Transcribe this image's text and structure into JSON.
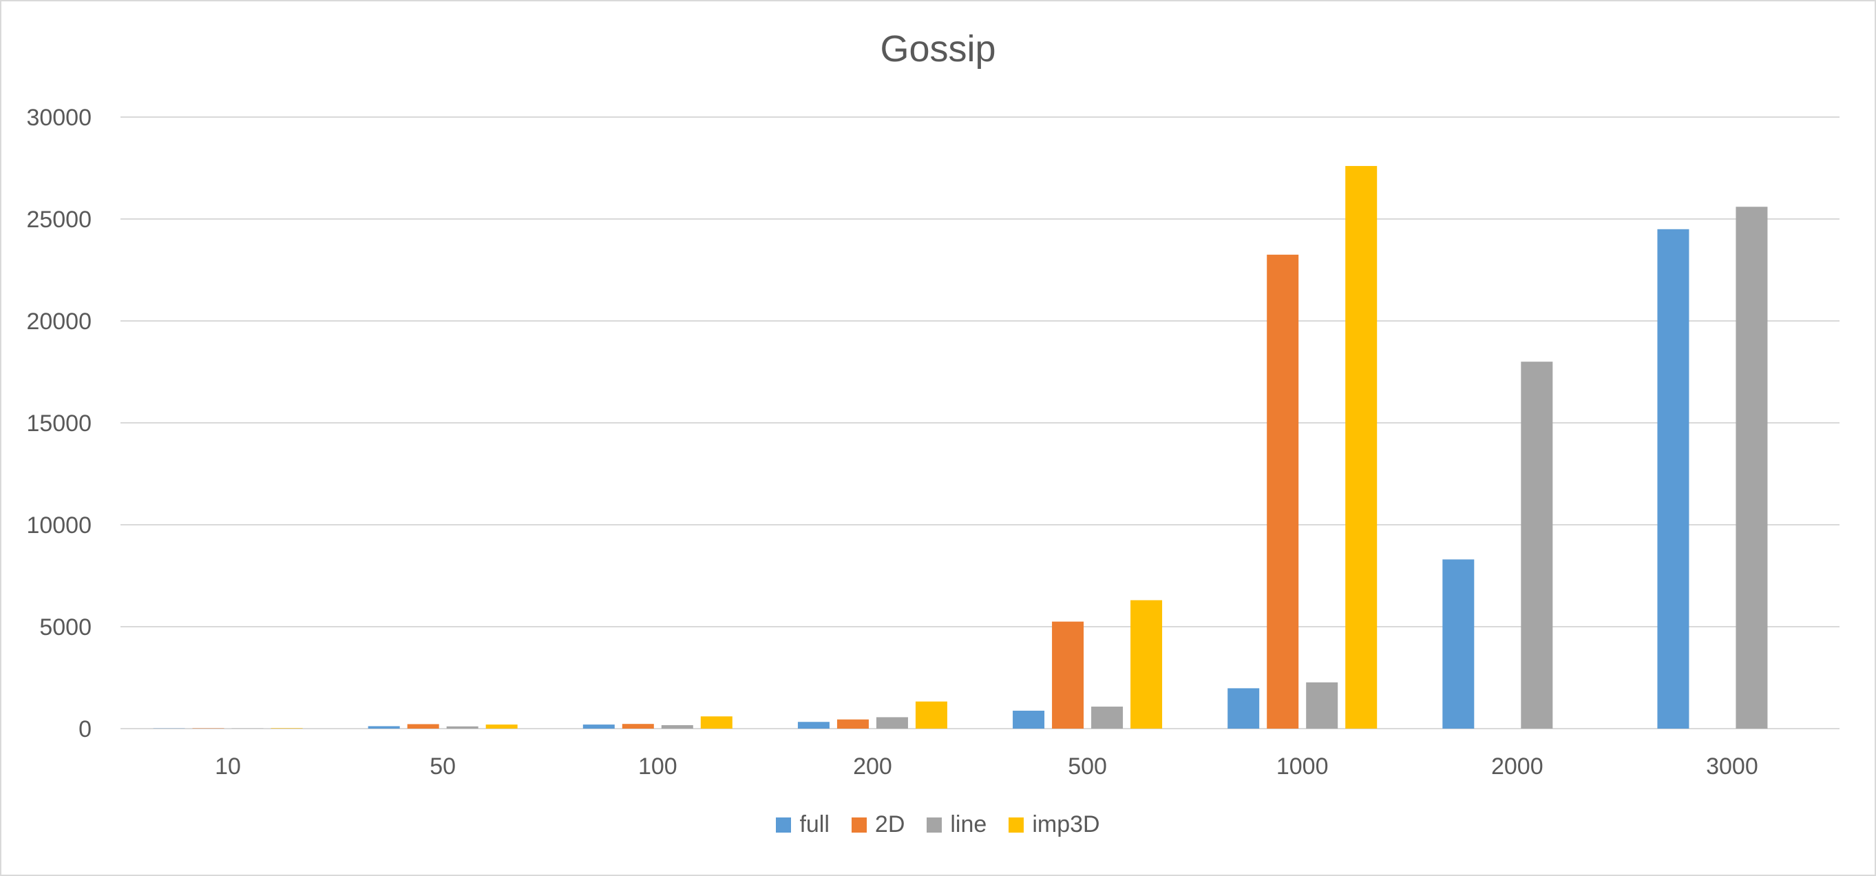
{
  "chart_data": {
    "type": "bar",
    "title": "Gossip",
    "xlabel": "",
    "ylabel": "",
    "categories": [
      "10",
      "50",
      "100",
      "200",
      "500",
      "1000",
      "2000",
      "3000"
    ],
    "ylim": [
      0,
      30000
    ],
    "yticks": [
      0,
      5000,
      10000,
      15000,
      20000,
      25000,
      30000
    ],
    "grid": true,
    "legend_position": "bottom",
    "series": [
      {
        "name": "full",
        "color": "#5b9bd5",
        "values": [
          10,
          120,
          200,
          330,
          880,
          1980,
          8300,
          24500
        ]
      },
      {
        "name": "2D",
        "color": "#ed7d31",
        "values": [
          15,
          220,
          230,
          450,
          5250,
          23250,
          null,
          null
        ]
      },
      {
        "name": "line",
        "color": "#a5a5a5",
        "values": [
          10,
          110,
          170,
          560,
          1080,
          2270,
          18000,
          25600
        ]
      },
      {
        "name": "imp3D",
        "color": "#ffc000",
        "values": [
          20,
          200,
          600,
          1330,
          6300,
          27600,
          null,
          null
        ]
      }
    ]
  }
}
